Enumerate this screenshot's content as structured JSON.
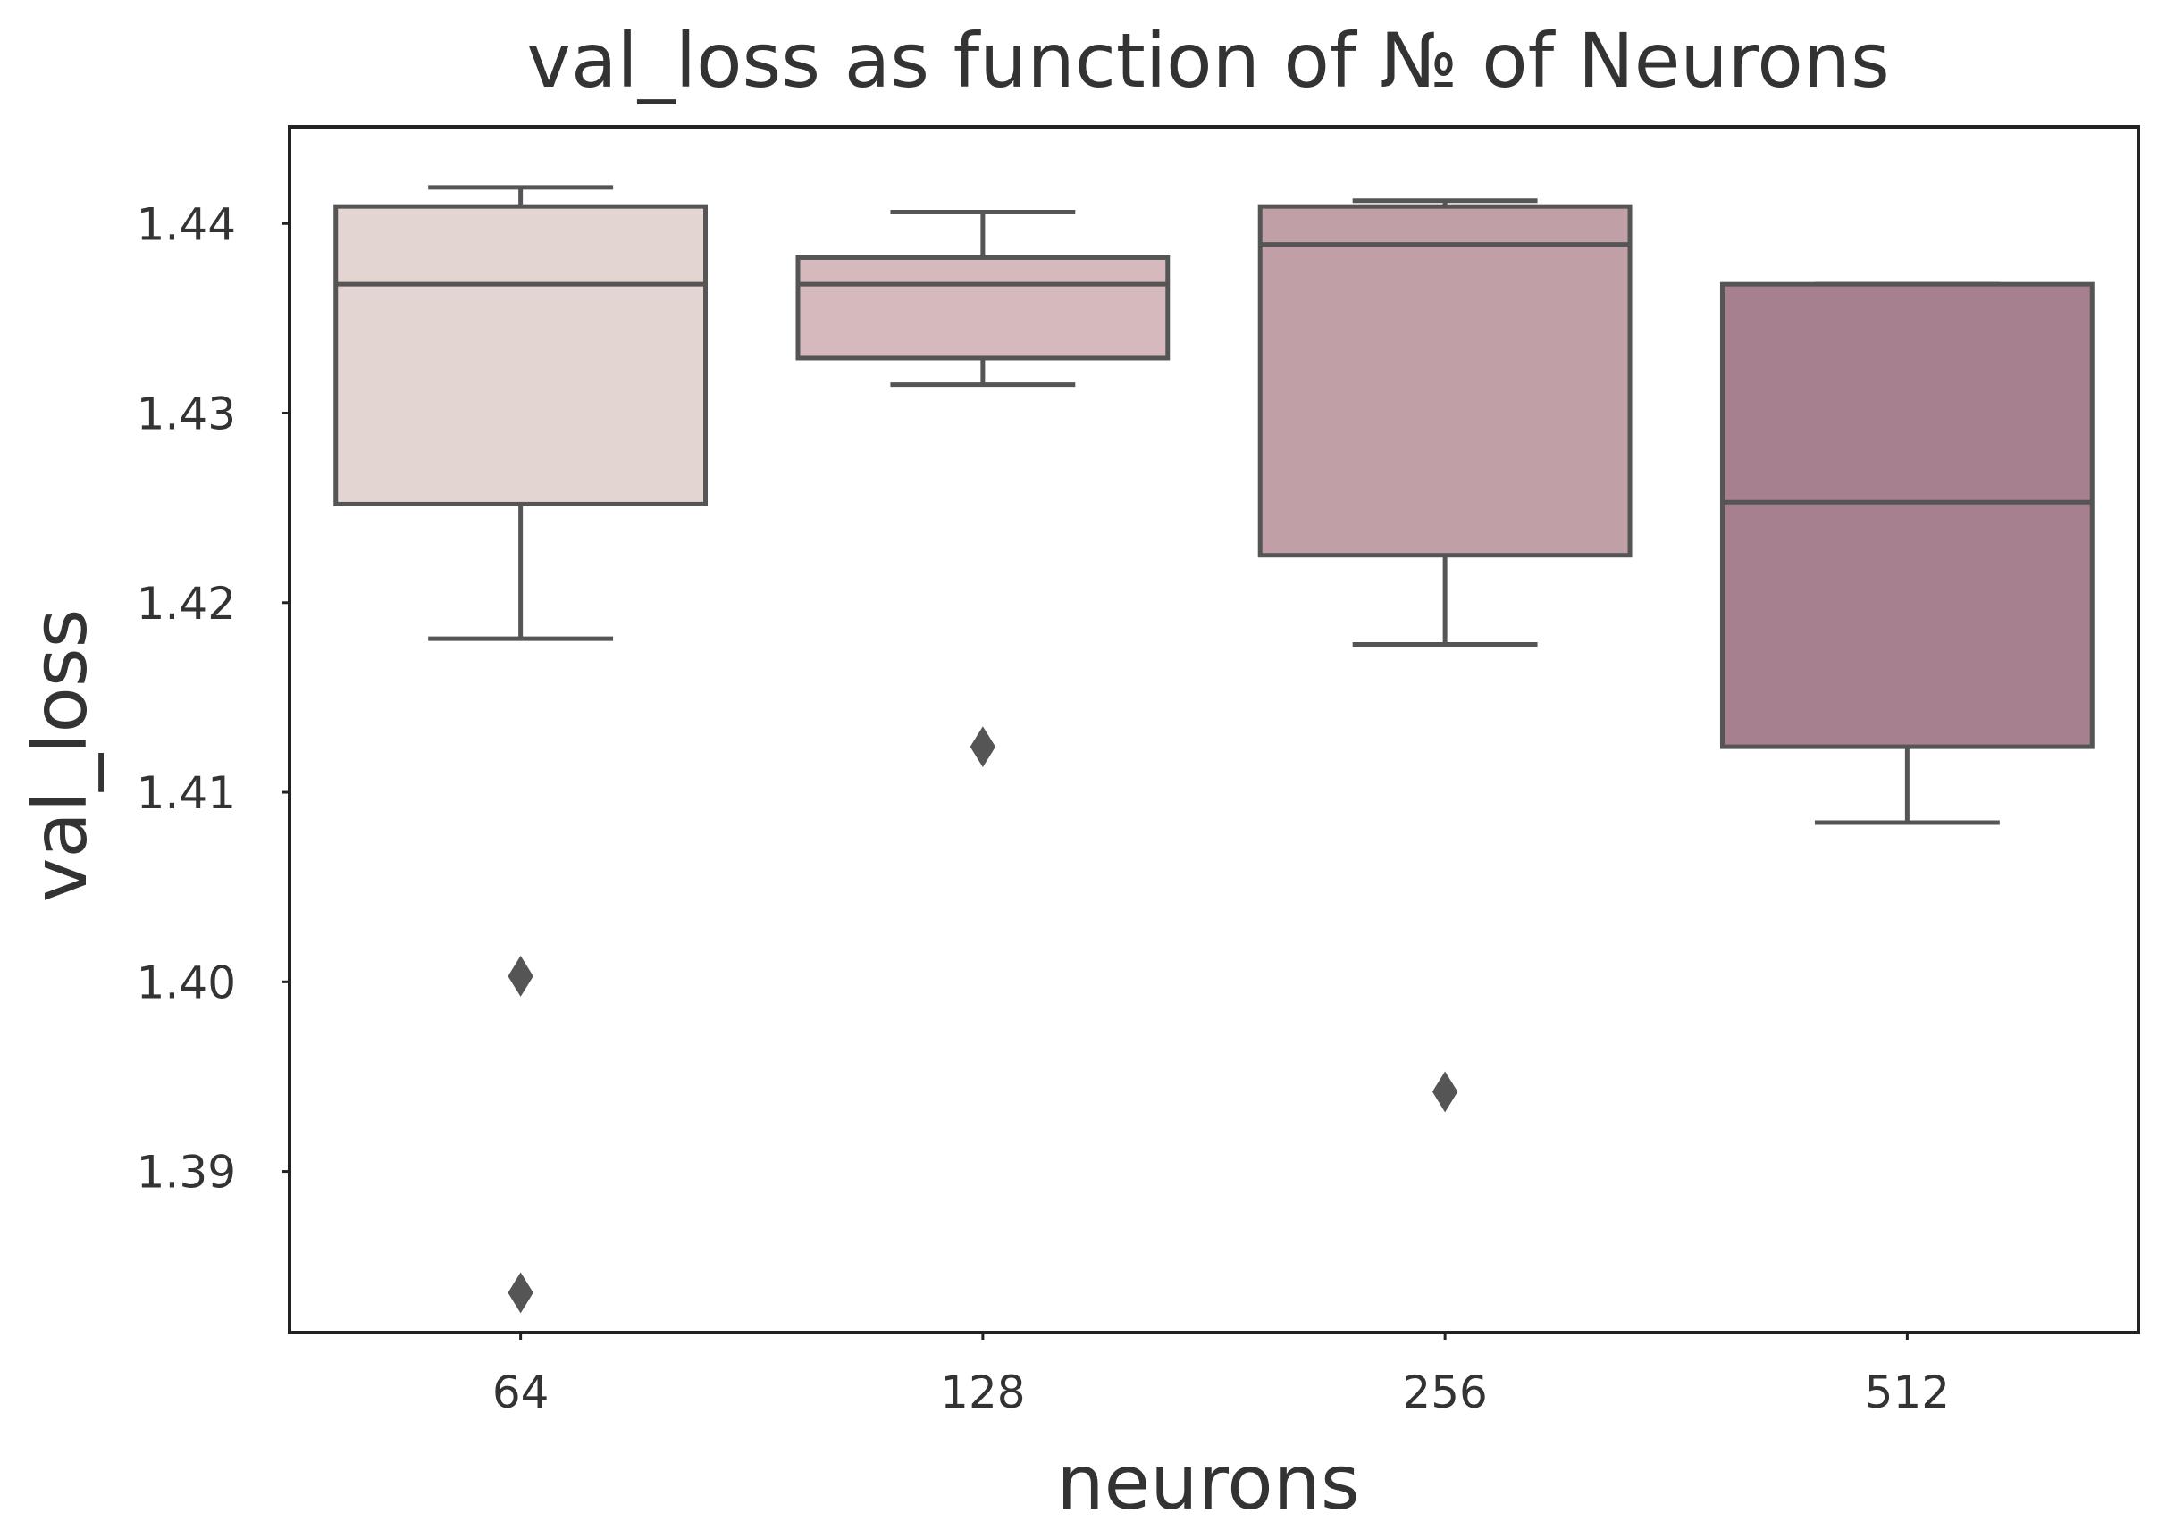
{
  "chart_data": {
    "type": "box",
    "title": "val_loss as function of № of Neurons",
    "xlabel": "neurons",
    "ylabel": "val_loss",
    "categories": [
      "64",
      "128",
      "256",
      "512"
    ],
    "ylim": [
      1.3815,
      1.4451
    ],
    "yticks": [
      1.39,
      1.4,
      1.41,
      1.42,
      1.43,
      1.44
    ],
    "ytick_labels": [
      "1.39",
      "1.40",
      "1.41",
      "1.42",
      "1.43",
      "1.44"
    ],
    "grid": false,
    "legend": "none",
    "boxes": [
      {
        "category": "64",
        "whisker_low": 1.4181,
        "q1": 1.4252,
        "median": 1.4368,
        "q3": 1.4409,
        "whisker_high": 1.4419,
        "outliers": [
          1.4003,
          1.3836
        ],
        "color": "#e3d5d2"
      },
      {
        "category": "128",
        "whisker_low": 1.4315,
        "q1": 1.4329,
        "median": 1.4368,
        "q3": 1.4382,
        "whisker_high": 1.4406,
        "outliers": [
          1.4124
        ],
        "color": "#d5b9bd"
      },
      {
        "category": "256",
        "whisker_low": 1.4178,
        "q1": 1.4225,
        "median": 1.4389,
        "q3": 1.4409,
        "whisker_high": 1.4412,
        "outliers": [
          1.3942
        ],
        "color": "#c19fa7"
      },
      {
        "category": "512",
        "whisker_low": 1.4084,
        "q1": 1.4124,
        "median": 1.4253,
        "q3": 1.4368,
        "whisker_high": 1.4368,
        "outliers": [],
        "color": "#a7808f"
      }
    ],
    "colors": {
      "edge": "#555555",
      "frame": "#222222",
      "text": "#333333"
    }
  }
}
